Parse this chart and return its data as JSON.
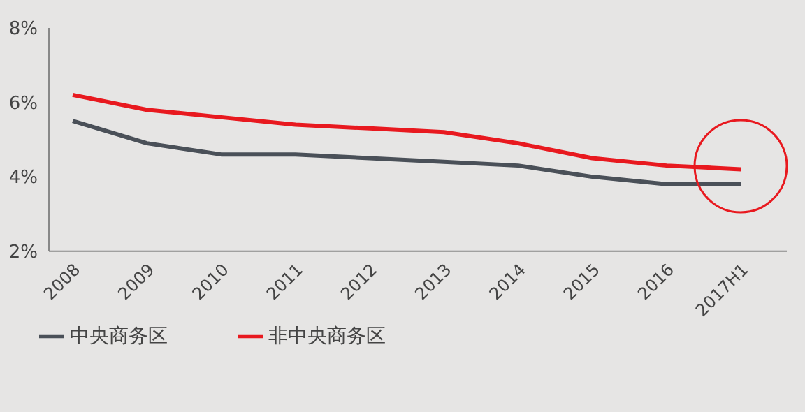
{
  "chart_data": {
    "type": "line",
    "categories": [
      "2008",
      "2009",
      "2010",
      "2011",
      "2012",
      "2013",
      "2014",
      "2015",
      "2016",
      "2017H1"
    ],
    "series": [
      {
        "name": "非中央商务区",
        "color": "#e8191f",
        "values": [
          6.2,
          5.8,
          5.6,
          5.4,
          5.3,
          5.2,
          4.9,
          4.5,
          4.3,
          4.2
        ]
      },
      {
        "name": "中央商务区",
        "color": "#4a5058",
        "values": [
          5.5,
          4.9,
          4.6,
          4.6,
          4.5,
          4.4,
          4.3,
          4.0,
          3.8,
          3.8
        ]
      }
    ],
    "ylim": [
      2,
      8
    ],
    "yticks": [
      {
        "value": 2,
        "label": "2%"
      },
      {
        "value": 4,
        "label": "4%"
      },
      {
        "value": 6,
        "label": "6%"
      },
      {
        "value": 8,
        "label": "8%"
      }
    ],
    "grid": false,
    "legend": "bottom left",
    "marker": "none",
    "line_style": "solid"
  }
}
